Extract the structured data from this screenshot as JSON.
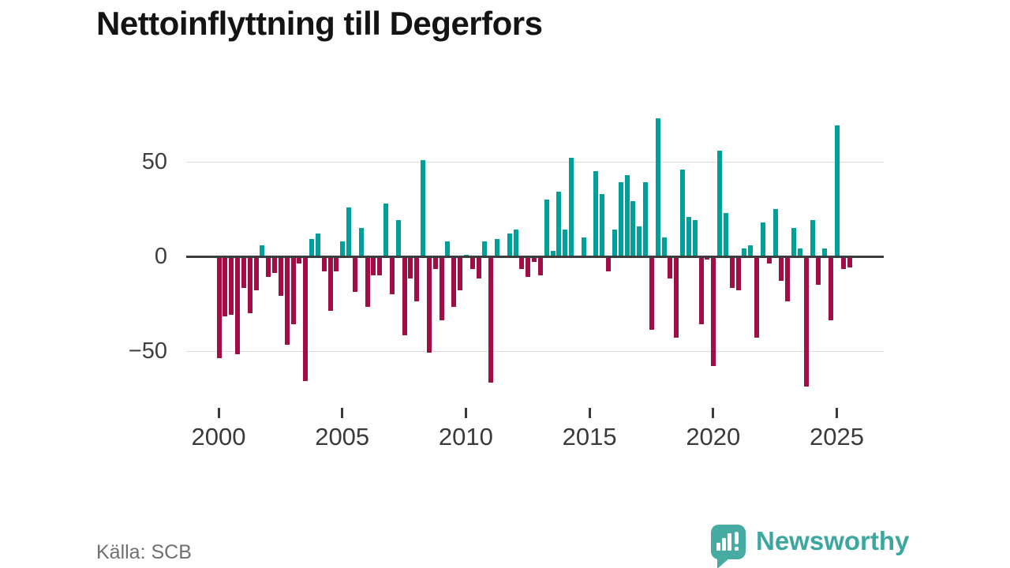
{
  "title": "Nettoinflyttning till Degerfors",
  "source": "Källa: SCB",
  "brand": {
    "name": "Newsworthy",
    "color": "#3ba79f",
    "icon": "newsworthy-speech-bubble-barchart-icon"
  },
  "colors": {
    "positive_bar": "#00a09a",
    "negative_bar": "#a10d45",
    "zero_axis": "#3d3d3d",
    "gridline": "#dcdcdc",
    "tick_label": "#3f3f3f",
    "source_text": "#707070",
    "title_text": "#141414"
  },
  "chart_data": {
    "type": "bar",
    "title": "Nettoinflyttning till Degerfors",
    "xlabel": "",
    "ylabel": "",
    "frequency": "quarterly",
    "start_period": "2000 Q1",
    "end_period": "2025 Q3",
    "x_axis": {
      "tick_labels": [
        "2000",
        "2005",
        "2010",
        "2015",
        "2020",
        "2025"
      ],
      "tick_years": [
        2000,
        2005,
        2010,
        2015,
        2020,
        2025
      ]
    },
    "y_axis": {
      "ticks": [
        50,
        0,
        -50
      ],
      "tick_labels": [
        "50",
        "0",
        "−50"
      ],
      "range": [
        -75,
        80
      ]
    },
    "grid": "horizontal-light",
    "legend": "none",
    "positive_color": "#00a09a",
    "negative_color": "#a10d45",
    "values": [
      -53,
      -31,
      -30,
      -51,
      -16,
      -29,
      -17,
      6,
      -10,
      -8,
      -20,
      -46,
      -35,
      -3,
      -65,
      9,
      12,
      -7,
      -28,
      -7,
      8,
      26,
      -18,
      15,
      -26,
      -9,
      -9,
      28,
      -19,
      19,
      -41,
      -11,
      -23,
      51,
      -50,
      -6,
      -33,
      8,
      -26,
      -17,
      1,
      -6,
      -11,
      8,
      -66,
      9,
      0,
      12,
      14,
      -6,
      -10,
      -2,
      -9,
      30,
      3,
      34,
      14,
      52,
      0,
      10,
      0,
      45,
      33,
      -7,
      14,
      39,
      43,
      29,
      16,
      39,
      -38,
      73,
      10,
      -11,
      -42,
      46,
      21,
      19,
      -35,
      -1,
      -57,
      56,
      23,
      -16,
      -17,
      4,
      6,
      -42,
      18,
      -3,
      25,
      -12,
      -23,
      15,
      4,
      -68,
      19,
      -14,
      4,
      -33,
      69,
      -6,
      -5
    ]
  }
}
